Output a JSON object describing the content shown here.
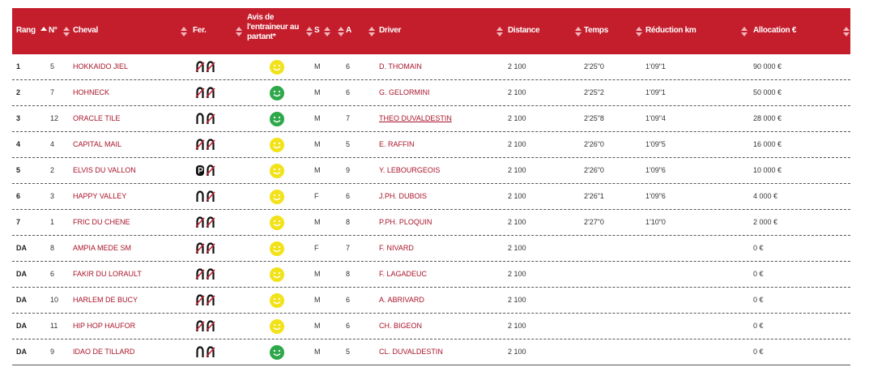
{
  "header": [
    "Rang",
    "N°",
    "Cheval",
    "Fer.",
    "Avis de l'entraineur au partant*",
    "S",
    "A",
    "Driver",
    "Distance",
    "Temps",
    "Réduction km",
    "Allocation €"
  ],
  "rows": [
    {
      "rang": "1",
      "no": 5,
      "cheval": "HOKKAIDO JIEL",
      "fer": [
        "crossed",
        "crossed"
      ],
      "avis": "#f2e21a",
      "s": "M",
      "a": 6,
      "driver": "D. THOMAIN",
      "distance": "2 100",
      "temps": "2'25\"0",
      "reduction": "1'09\"1",
      "allocation": "90 000 €"
    },
    {
      "rang": "2",
      "no": 7,
      "cheval": "HOHNECK",
      "fer": [
        "crossed",
        "crossed"
      ],
      "avis": "#2ea84a",
      "s": "M",
      "a": 6,
      "driver": "G. GELORMINI",
      "distance": "2 100",
      "temps": "2'25\"2",
      "reduction": "1'09\"1",
      "allocation": "50 000 €"
    },
    {
      "rang": "3",
      "no": 12,
      "cheval": "ORACLE TILE",
      "fer": [
        "plain",
        "crossed"
      ],
      "avis": "#2ea84a",
      "s": "M",
      "a": 7,
      "driver": "THEO DUVALDESTIN",
      "driver_underline": true,
      "distance": "2 100",
      "temps": "2'25\"8",
      "reduction": "1'09\"4",
      "allocation": "28 000 €"
    },
    {
      "rang": "4",
      "no": 4,
      "cheval": "CAPITAL MAIL",
      "fer": [
        "crossed",
        "crossed"
      ],
      "avis": "#f2e21a",
      "s": "M",
      "a": 5,
      "driver": "E. RAFFIN",
      "distance": "2 100",
      "temps": "2'26\"0",
      "reduction": "1'09\"5",
      "allocation": "16 000 €"
    },
    {
      "rang": "5",
      "no": 2,
      "cheval": "ELVIS DU VALLON",
      "fer": [
        "plastic",
        "crossed"
      ],
      "avis": "#f2e21a",
      "s": "M",
      "a": 9,
      "driver": "Y. LEBOURGEOIS",
      "distance": "2 100",
      "temps": "2'26\"0",
      "reduction": "1'09\"6",
      "allocation": "10 000 €"
    },
    {
      "rang": "6",
      "no": 3,
      "cheval": "HAPPY VALLEY",
      "fer": [
        "plain",
        "crossed"
      ],
      "avis": "#f2e21a",
      "s": "F",
      "a": 6,
      "driver": "J.PH. DUBOIS",
      "distance": "2 100",
      "temps": "2'26\"1",
      "reduction": "1'09\"6",
      "allocation": "4 000 €"
    },
    {
      "rang": "7",
      "no": 1,
      "cheval": "FRIC DU CHENE",
      "fer": [
        "crossed",
        "crossed"
      ],
      "avis": "#f2e21a",
      "s": "M",
      "a": 8,
      "driver": "P.PH. PLOQUIN",
      "distance": "2 100",
      "temps": "2'27\"0",
      "reduction": "1'10\"0",
      "allocation": "2 000 €"
    },
    {
      "rang": "DA",
      "no": 8,
      "cheval": "AMPIA MEDE SM",
      "fer": [
        "crossed",
        "crossed"
      ],
      "avis": "#f2e21a",
      "s": "F",
      "a": 7,
      "driver": "F. NIVARD",
      "distance": "2 100",
      "allocation": "0 €"
    },
    {
      "rang": "DA",
      "no": 6,
      "cheval": "FAKIR DU LORAULT",
      "fer": [
        "crossed",
        "crossed"
      ],
      "avis": "#f2e21a",
      "s": "M",
      "a": 8,
      "driver": "F. LAGADEUC",
      "distance": "2 100",
      "allocation": "0 €"
    },
    {
      "rang": "DA",
      "no": 10,
      "cheval": "HARLEM DE BUCY",
      "fer": [
        "crossed",
        "crossed"
      ],
      "avis": "#f2e21a",
      "s": "M",
      "a": 6,
      "driver": "A. ABRIVARD",
      "distance": "2 100",
      "allocation": "0 €"
    },
    {
      "rang": "DA",
      "no": 11,
      "cheval": "HIP HOP HAUFOR",
      "fer": [
        "crossed",
        "crossed"
      ],
      "avis": "#f2e21a",
      "s": "M",
      "a": 6,
      "driver": "CH. BIGEON",
      "distance": "2 100",
      "allocation": "0 €"
    },
    {
      "rang": "DA",
      "no": 9,
      "cheval": "IDAO DE TILLARD",
      "fer": [
        "plain",
        "crossed"
      ],
      "avis": "#2ea84a",
      "s": "M",
      "a": 5,
      "driver": "CL. DUVALDESTIN",
      "distance": "2 100",
      "allocation": "0 €"
    }
  ]
}
